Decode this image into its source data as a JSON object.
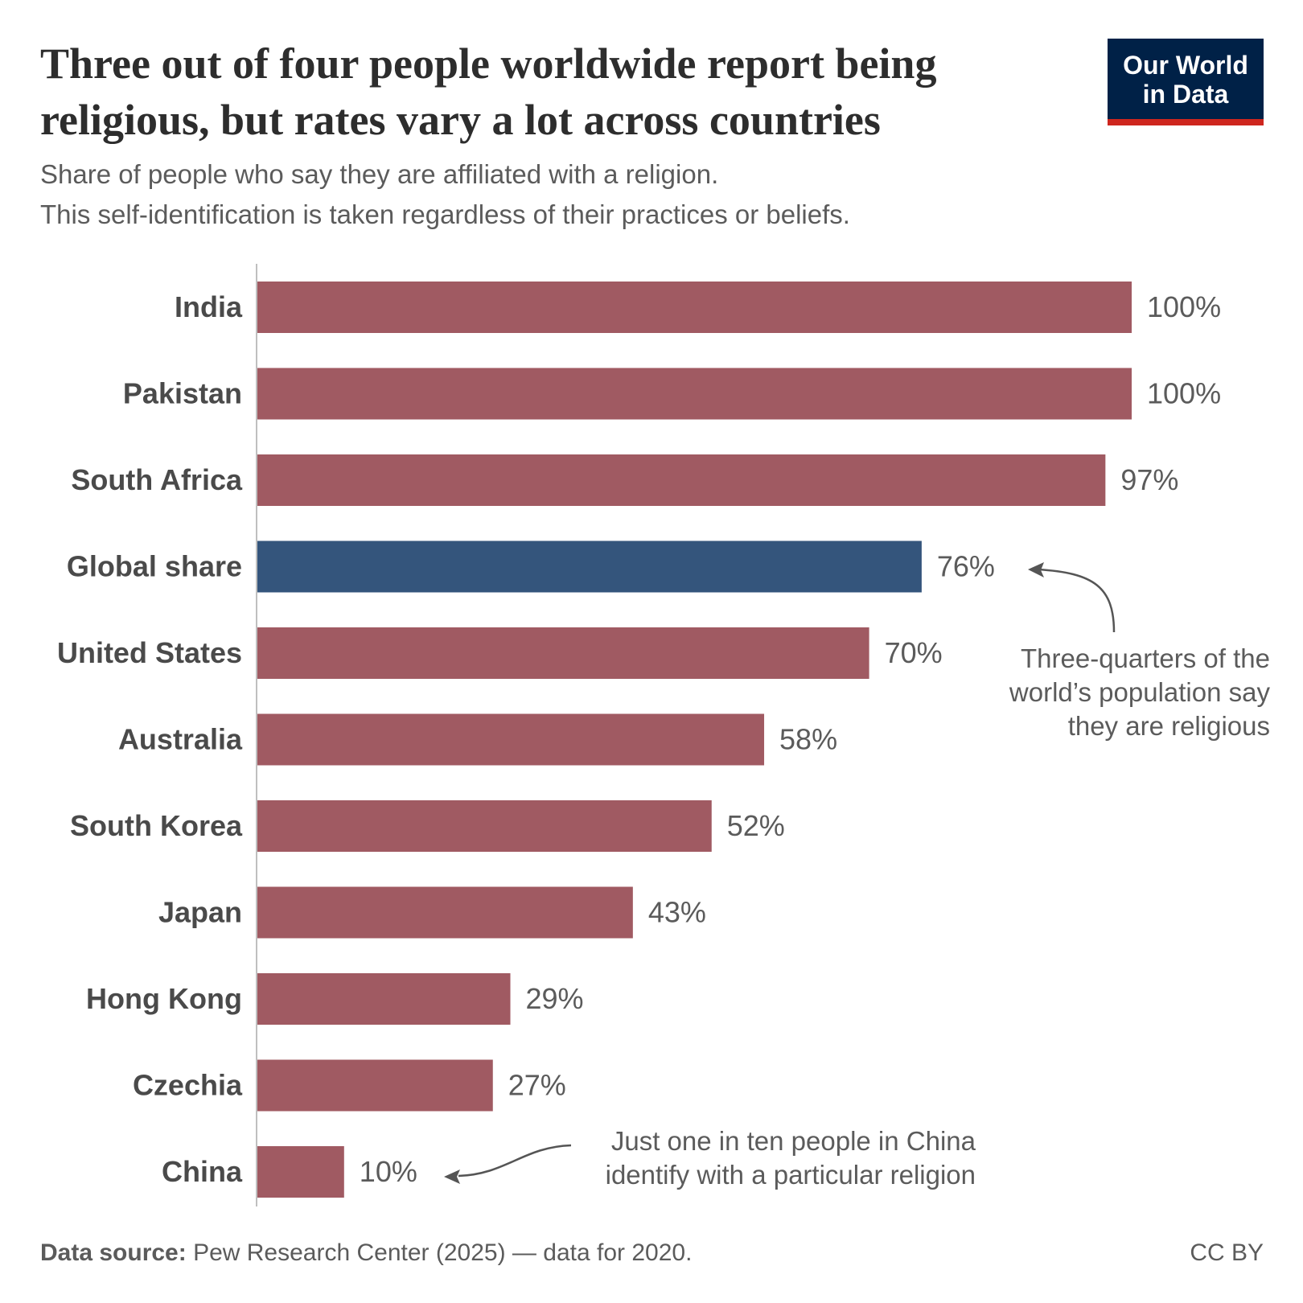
{
  "title": "Three out of four people worldwide report being religious, but rates vary a lot across countries",
  "subtitle_lines": [
    "Share of people who say they are affiliated with a religion.",
    "This self-identification is taken regardless of their practices or beliefs."
  ],
  "logo": {
    "line1": "Our World",
    "line2": "in Data"
  },
  "footer": {
    "source_label": "Data source:",
    "source_text": " Pew Research Center (2025) — data for 2020.",
    "license": "CC BY"
  },
  "colors": {
    "bar": "#a05a62",
    "highlight": "#34557c",
    "label": "#4a4a4a",
    "value": "#5b5b5b"
  },
  "chart_data": {
    "type": "bar",
    "orientation": "horizontal",
    "categories": [
      "India",
      "Pakistan",
      "South Africa",
      "Global share",
      "United States",
      "Australia",
      "South Korea",
      "Japan",
      "Hong Kong",
      "Czechia",
      "China"
    ],
    "values": [
      100,
      100,
      97,
      76,
      70,
      58,
      52,
      43,
      29,
      27,
      10
    ],
    "value_labels": [
      "100%",
      "100%",
      "97%",
      "76%",
      "70%",
      "58%",
      "52%",
      "43%",
      "29%",
      "27%",
      "10%"
    ],
    "highlighted": [
      "Global share"
    ],
    "xlim": [
      0,
      100
    ],
    "unit": "%",
    "annotations": [
      {
        "target": "Global share",
        "lines": [
          "Three-quarters of the",
          "world’s population say",
          "they are religious"
        ]
      },
      {
        "target": "China",
        "lines": [
          "Just one in ten people in China",
          "identify with a particular religion"
        ]
      }
    ]
  }
}
